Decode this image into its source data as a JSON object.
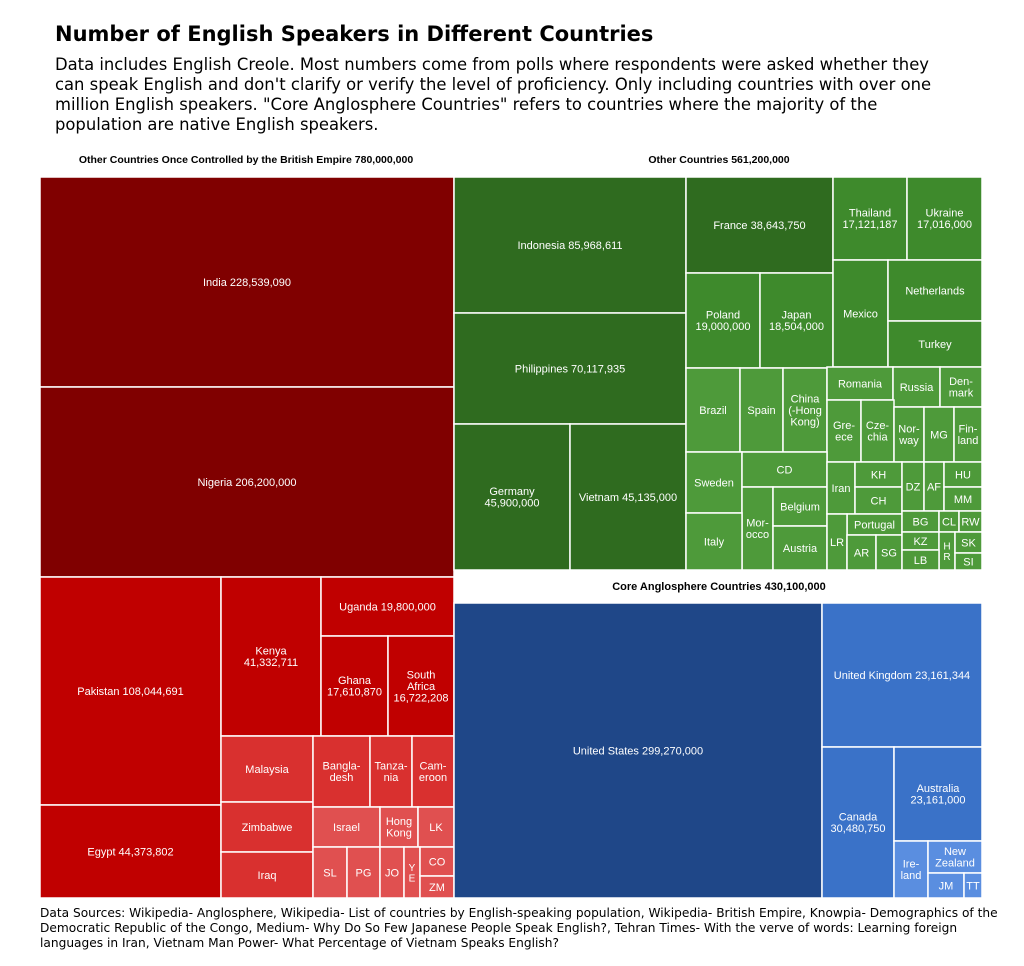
{
  "title": "Number of English Speakers in Different Countries",
  "subtitle": "Data includes English Creole. Most numbers come from polls where respondents were asked whether they can speak English and don't clarify or verify the level of proficiency. Only including countries with over one million English speakers. \"Core Anglosphere Countries\" refers to countries where the majority of the population are native English speakers.",
  "sources": "Data Sources: Wikipedia- Anglosphere, Wikipedia- List of countries by English-speaking population, Wikipedia- British Empire, Knowpia- Demographics of the Democratic Republic of the Congo, Medium- Why Do So Few Japanese People Speak English?, Tehran Times- With the verve of words: Learning foreign languages in Iran, Vietnam Man Power- What Percentage of Vietnam Speaks English?",
  "colors": {
    "british_dark": "#800000",
    "british_mid": "#c00000",
    "british_light": "#d9302f",
    "british_lighter": "#e05050",
    "other_dark": "#2f6b1f",
    "other_mid": "#3e8a2c",
    "other_light": "#4e9a3a",
    "core_dark": "#1f4788",
    "core_mid": "#3a72c8",
    "core_light": "#5a8ee0"
  },
  "chart_data": {
    "type": "treemap",
    "groups": [
      {
        "label": "Other Countries Once Controlled by the British Empire 780,000,000",
        "cells": [
          {
            "label": "India 228,539,090",
            "value": 228539090
          },
          {
            "label": "Nigeria 206,200,000",
            "value": 206200000
          },
          {
            "label": "Pakistan 108,044,691",
            "value": 108044691
          },
          {
            "label": "Egypt 44,373,802",
            "value": 44373802
          },
          {
            "label": "Kenya\n41,332,711",
            "value": 41332711
          },
          {
            "label": "Uganda 19,800,000",
            "value": 19800000
          },
          {
            "label": "Ghana\n17,610,870",
            "value": 17610870
          },
          {
            "label": "South\nAfrica\n16,722,208",
            "value": 16722208
          },
          {
            "label": "Malaysia"
          },
          {
            "label": "Zimbabwe"
          },
          {
            "label": "Iraq"
          },
          {
            "label": "Bangla-\ndesh"
          },
          {
            "label": "Tanza-\nnia"
          },
          {
            "label": "Cam-\neroon"
          },
          {
            "label": "Israel"
          },
          {
            "label": "Hong\nKong"
          },
          {
            "label": "LK"
          },
          {
            "label": "SL"
          },
          {
            "label": "PG"
          },
          {
            "label": "JO"
          },
          {
            "label": "Y\nE"
          },
          {
            "label": "CO"
          },
          {
            "label": "ZM"
          }
        ]
      },
      {
        "label": "Other Countries 561,200,000",
        "cells": [
          {
            "label": "Indonesia 85,968,611",
            "value": 85968611
          },
          {
            "label": "Philippines 70,117,935",
            "value": 70117935
          },
          {
            "label": "Germany\n45,900,000",
            "value": 45900000
          },
          {
            "label": "Vietnam 45,135,000",
            "value": 45135000
          },
          {
            "label": "France 38,643,750",
            "value": 38643750
          },
          {
            "label": "Thailand\n17,121,187",
            "value": 17121187
          },
          {
            "label": "Ukraine\n17,016,000",
            "value": 17016000
          },
          {
            "label": "Poland\n19,000,000",
            "value": 19000000
          },
          {
            "label": "Japan\n18,504,000",
            "value": 18504000
          },
          {
            "label": "Mexico"
          },
          {
            "label": "Netherlands"
          },
          {
            "label": "Turkey"
          },
          {
            "label": "Brazil"
          },
          {
            "label": "Spain"
          },
          {
            "label": "China\n(-Hong\nKong)"
          },
          {
            "label": "Romania"
          },
          {
            "label": "Russia"
          },
          {
            "label": "Den-\nmark"
          },
          {
            "label": "Gre-\nece"
          },
          {
            "label": "Cze-\nchia"
          },
          {
            "label": "Nor-\nway"
          },
          {
            "label": "MG"
          },
          {
            "label": "Fin-\nland"
          },
          {
            "label": "Sweden"
          },
          {
            "label": "CD"
          },
          {
            "label": "Mor-\nocco"
          },
          {
            "label": "Belgium"
          },
          {
            "label": "Italy"
          },
          {
            "label": "Austria"
          },
          {
            "label": "Iran"
          },
          {
            "label": "KH"
          },
          {
            "label": "CH"
          },
          {
            "label": "DZ"
          },
          {
            "label": "AF"
          },
          {
            "label": "HU"
          },
          {
            "label": "MM"
          },
          {
            "label": "Portugal"
          },
          {
            "label": "BG"
          },
          {
            "label": "CL"
          },
          {
            "label": "RW"
          },
          {
            "label": "LR"
          },
          {
            "label": "AR"
          },
          {
            "label": "SG"
          },
          {
            "label": "KZ"
          },
          {
            "label": "H\nR"
          },
          {
            "label": "SK"
          },
          {
            "label": "LB"
          },
          {
            "label": "SI"
          }
        ]
      },
      {
        "label": "Core Anglosphere Countries 430,100,000",
        "cells": [
          {
            "label": "United States 299,270,000",
            "value": 299270000
          },
          {
            "label": "United Kingdom 23,161,344",
            "value": 23161344
          },
          {
            "label": "Canada\n30,480,750",
            "value": 30480750
          },
          {
            "label": "Australia\n23,161,000",
            "value": 23161000
          },
          {
            "label": "Ire-\nland"
          },
          {
            "label": "New\nZealand"
          },
          {
            "label": "JM"
          },
          {
            "label": "TT"
          }
        ]
      }
    ]
  }
}
